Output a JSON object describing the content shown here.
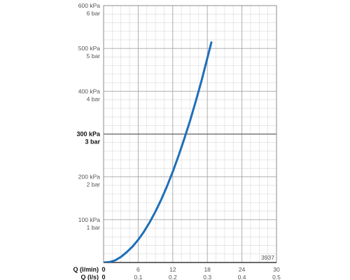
{
  "chart_data": {
    "type": "line",
    "series": [
      {
        "color": "#1f6fb8",
        "x": [
          0,
          1,
          2,
          3,
          4,
          5,
          6,
          7,
          8,
          9,
          10,
          11,
          12,
          13,
          14,
          15,
          16,
          17,
          18.7
        ],
        "y": [
          0,
          1,
          5,
          13,
          24,
          37,
          53,
          72,
          94,
          119,
          147,
          178,
          212,
          249,
          289,
          331,
          377,
          425,
          514
        ]
      }
    ],
    "x_ticks_lmin": [
      "0",
      "6",
      "12",
      "18",
      "24",
      "30"
    ],
    "x_ticks_ls": [
      "0",
      "0.1",
      "0.2",
      "0.3",
      "0.4",
      "0.5"
    ],
    "xlabel_lmin": "Q (l/min)",
    "xlabel_ls": "Q (l/s)",
    "y_ticks": [
      {
        "kpa": "100 kPa",
        "bar": "1 bar",
        "bold": false
      },
      {
        "kpa": "200 kPa",
        "bar": "2 bar",
        "bold": false
      },
      {
        "kpa": "300 kPa",
        "bar": "3 bar",
        "bold": true
      },
      {
        "kpa": "400 kPa",
        "bar": "4 bar",
        "bold": false
      },
      {
        "kpa": "500 kPa",
        "bar": "5 bar",
        "bold": false
      },
      {
        "kpa": "600 kPa",
        "bar": "6 bar",
        "bold": false
      }
    ],
    "xlim": [
      0,
      30
    ],
    "ylim": [
      0,
      600
    ],
    "grid": true,
    "corner_label": "3937"
  }
}
